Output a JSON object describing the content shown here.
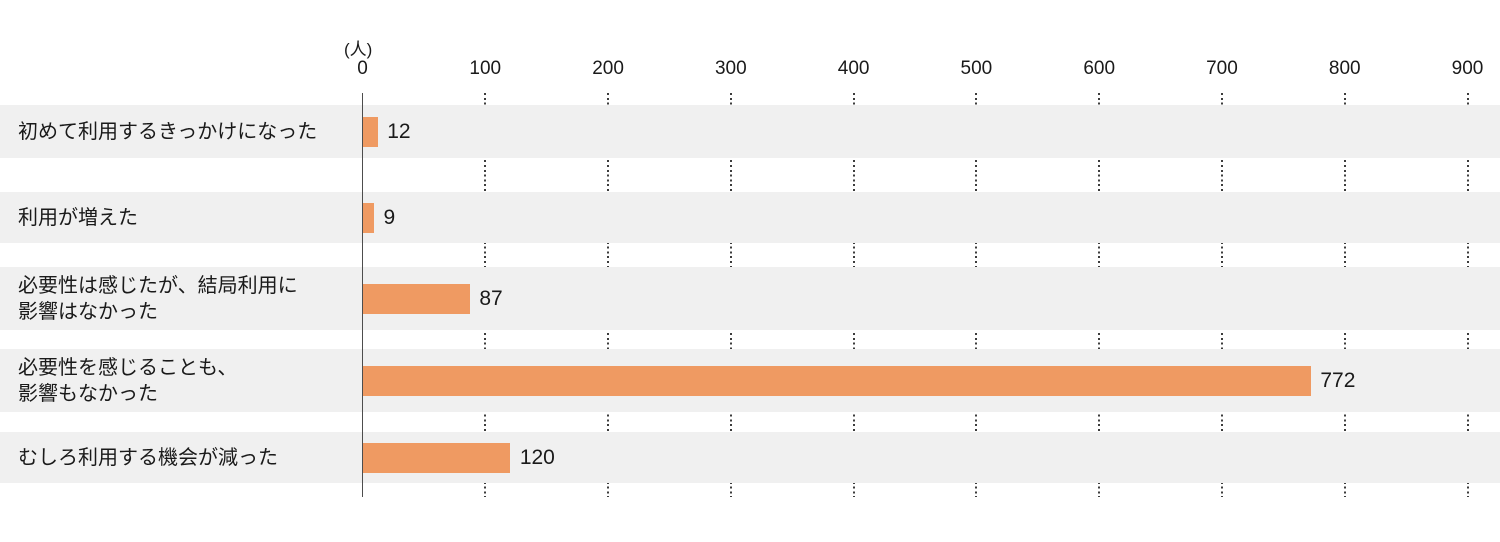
{
  "chart_data": {
    "type": "bar",
    "orientation": "horizontal",
    "title": "",
    "unit_label": "(人)",
    "categories": [
      [
        "初めて利用するきっかけになった"
      ],
      [
        "利用が増えた"
      ],
      [
        "必要性は感じたが、結局利用に",
        "影響はなかった"
      ],
      [
        "必要性を感じることも、",
        "影響もなかった"
      ],
      [
        "むしろ利用する機会が減った"
      ]
    ],
    "values": [
      12,
      9,
      87,
      772,
      120
    ],
    "xlim": [
      0,
      900
    ],
    "x_ticks": [
      0,
      100,
      200,
      300,
      400,
      500,
      600,
      700,
      800,
      900
    ],
    "grid": "dotted-vertical",
    "legend": "none",
    "colors": {
      "bar": "#ef9a62",
      "row_stripe": "#f0f0f0",
      "axis_line": "#4d4d4d",
      "gridline_dots": "#3c3c3c",
      "text": "#1a1a1a"
    }
  }
}
